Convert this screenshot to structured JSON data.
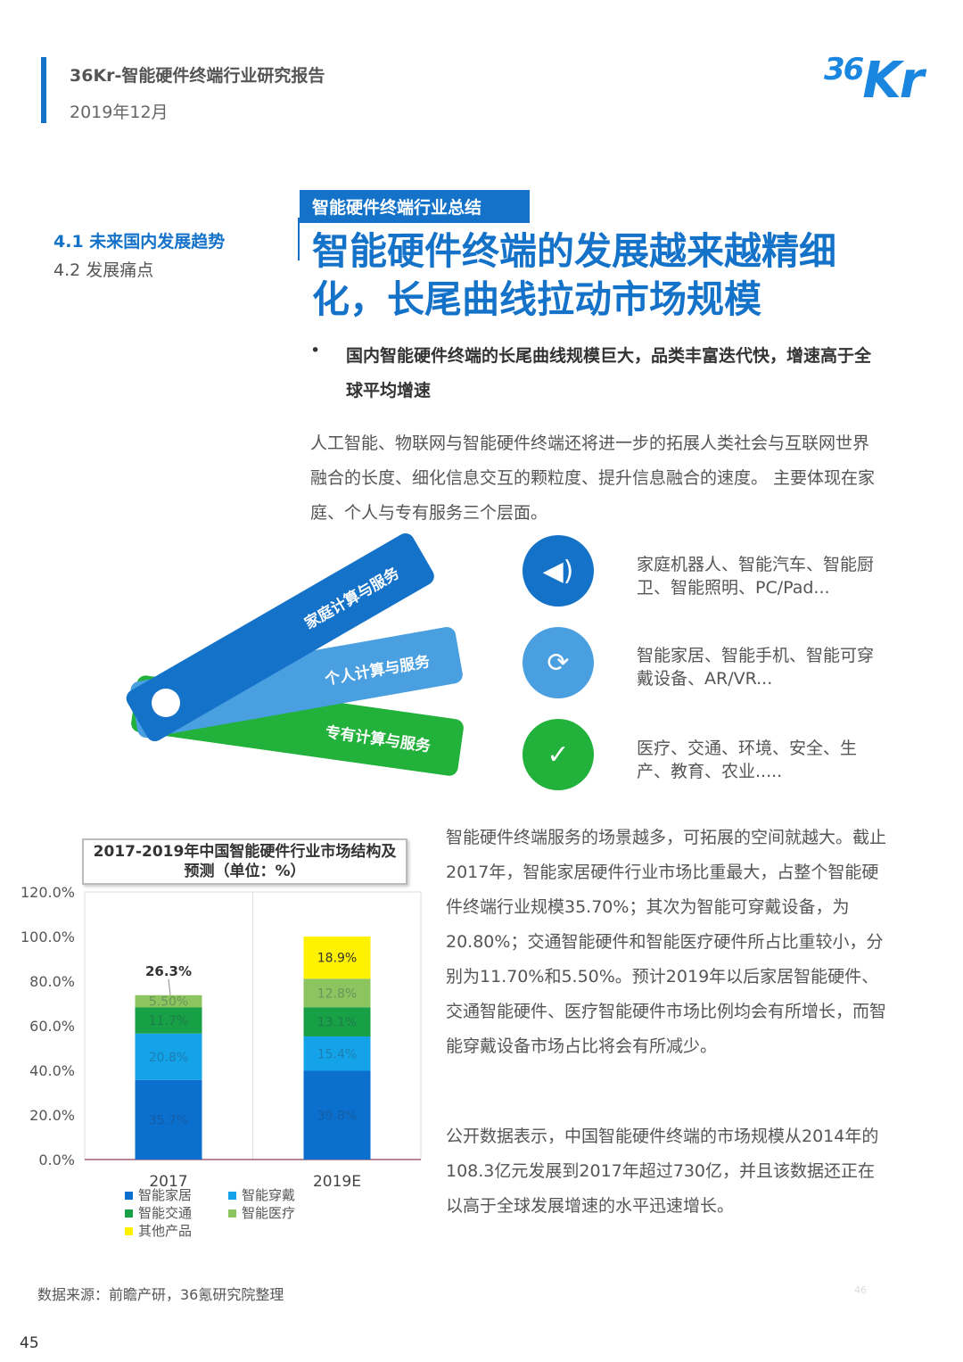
{
  "header": {
    "title": "36Kr-智能硬件终端行业研究报告",
    "date": "2019年12月",
    "logo": "36Kr"
  },
  "nav": {
    "items": [
      {
        "label": "4.1 未来国内发展趋势",
        "active": true
      },
      {
        "label": "4.2 发展痛点",
        "active": false
      }
    ]
  },
  "section_tag": "智能硬件终端行业总结",
  "headline": "智能硬件终端的发展越来越精细化，长尾曲线拉动市场规模",
  "subhead": "国内智能硬件终端的长尾曲线规模巨大，品类丰富迭代快，增速高于全球平均增速",
  "paragraph1": "人工智能、物联网与智能硬件终端还将进一步的拓展人类社会与互联网世界融合的长度、细化信息交互的颗粒度、提升信息融合的速度。 主要体现在家庭、个人与专有服务三个层面。",
  "categories": [
    {
      "tab": "家庭计算与服务",
      "icon": "speaker-icon",
      "color": "#1472c9",
      "text": "家庭机器人、智能汽车、智能厨卫、智能照明、PC/Pad..."
    },
    {
      "tab": "个人计算与服务",
      "icon": "sync-icon",
      "color": "#4a9fe0",
      "text": "智能家居、智能手机、智能可穿戴设备、AR/VR..."
    },
    {
      "tab": "专有计算与服务",
      "icon": "shield-check-icon",
      "color": "#22b13a",
      "text": "医疗、交通、环境、安全、生产、教育、农业....."
    }
  ],
  "paragraph2": "智能硬件终端服务的场景越多，可拓展的空间就越大。截止2017年，智能家居硬件行业市场比重最大，占整个智能硬件终端行业规模35.70%；其次为智能可穿戴设备，为20.80%；交通智能硬件和智能医疗硬件所占比重较小，分别为11.70%和5.50%。预计2019年以后家居智能硬件、交通智能硬件、医疗智能硬件市场比例均会有所增长，而智能穿戴设备市场占比将会有所减少。",
  "paragraph3": "公开数据表示，中国智能硬件终端的市场规模从2014年的108.3亿元发展到2017年超过730亿，并且该数据还正在以高于全球发展增速的水平迅速增长。",
  "chart_data": {
    "type": "bar",
    "stacked": true,
    "title": "2017-2019年中国智能硬件行业市场结构及预测（单位：%）",
    "categories": [
      "2017",
      "2019E"
    ],
    "ylim": [
      0,
      120
    ],
    "yticks": [
      "0.0%",
      "20.0%",
      "40.0%",
      "60.0%",
      "80.0%",
      "100.0%",
      "120.0%"
    ],
    "series": [
      {
        "name": "智能家居",
        "color": "#0b6fce",
        "values": [
          35.7,
          39.8
        ],
        "labels": [
          "35.7%",
          "39.8%"
        ]
      },
      {
        "name": "智能穿戴",
        "color": "#14a3e8",
        "values": [
          20.8,
          15.4
        ],
        "labels": [
          "20.8%",
          "15.4%"
        ]
      },
      {
        "name": "智能交通",
        "color": "#17a046",
        "values": [
          11.7,
          13.1
        ],
        "labels": [
          "11.7%",
          "13.1%"
        ]
      },
      {
        "name": "智能医疗",
        "color": "#8cc560",
        "values": [
          5.5,
          12.8
        ],
        "labels": [
          "5.50%",
          "12.8%"
        ]
      },
      {
        "name": "其他产品",
        "color": "#fff200",
        "values": [
          26.3,
          18.9
        ],
        "labels": [
          "26.3%",
          "18.9%"
        ],
        "bar_shown": [
          false,
          true
        ]
      }
    ],
    "legend": "bottom"
  },
  "source": "数据来源：前瞻产研，36氪研究院整理",
  "page_number": "45",
  "faint_page_number": "46"
}
